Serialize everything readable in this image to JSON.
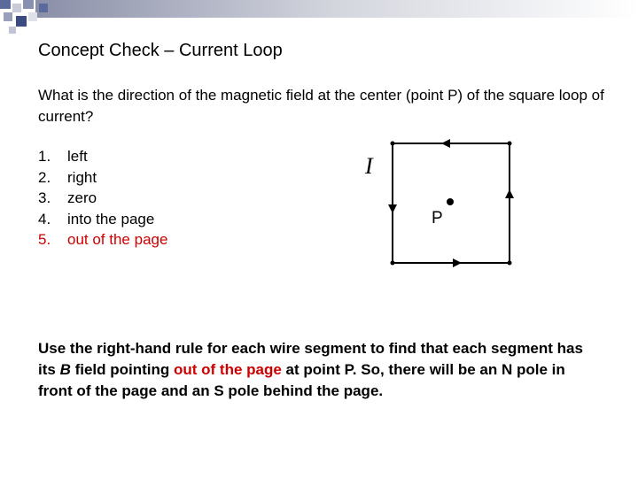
{
  "slide": {
    "title": "Concept Check – Current Loop",
    "question": "What is the direction of the magnetic field at the center (point P) of the square loop of current?",
    "options": [
      {
        "number": "1.",
        "text": "left"
      },
      {
        "number": "2.",
        "text": "right"
      },
      {
        "number": "3.",
        "text": "zero"
      },
      {
        "number": "4.",
        "text": "into the page"
      },
      {
        "number": "5.",
        "text": "out of the page"
      }
    ],
    "diagram": {
      "current_label": "I",
      "point_label": "P"
    },
    "explanation": [
      "Use the right-hand rule for each wire segment to find that each segment has its ",
      "B",
      " field pointing ",
      "out of the page",
      " at point P. So, there will be an N pole in front of the page and an S pole behind the page."
    ]
  }
}
